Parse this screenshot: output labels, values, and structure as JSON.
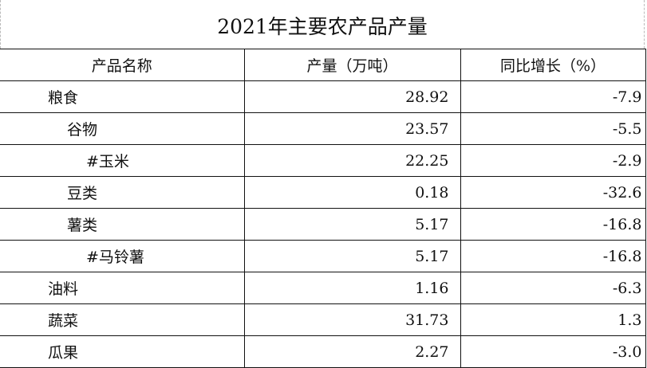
{
  "title": "2021年主要农产品产量",
  "headers": [
    "产品名称",
    "产量（万吨）",
    "同比增长（%）"
  ],
  "rows": [
    {
      "name": "粮食",
      "level": 0,
      "output": "28.92",
      "growth": "-7.9"
    },
    {
      "name": "谷物",
      "level": 1,
      "output": "23.57",
      "growth": "-5.5"
    },
    {
      "name": "#玉米",
      "level": 2,
      "output": "22.25",
      "growth": "-2.9"
    },
    {
      "name": "豆类",
      "level": 1,
      "output": "0.18",
      "growth": "-32.6"
    },
    {
      "name": "薯类",
      "level": 1,
      "output": "5.17",
      "growth": "-16.8"
    },
    {
      "name": "#马铃薯",
      "level": 2,
      "output": "5.17",
      "growth": "-16.8"
    },
    {
      "name": "油料",
      "level": 0,
      "output": "1.16",
      "growth": "-6.3"
    },
    {
      "name": "蔬菜",
      "level": 0,
      "output": "31.73",
      "growth": "1.3"
    },
    {
      "name": "瓜果",
      "level": 0,
      "output": "2.27",
      "growth": "-3.0"
    }
  ]
}
